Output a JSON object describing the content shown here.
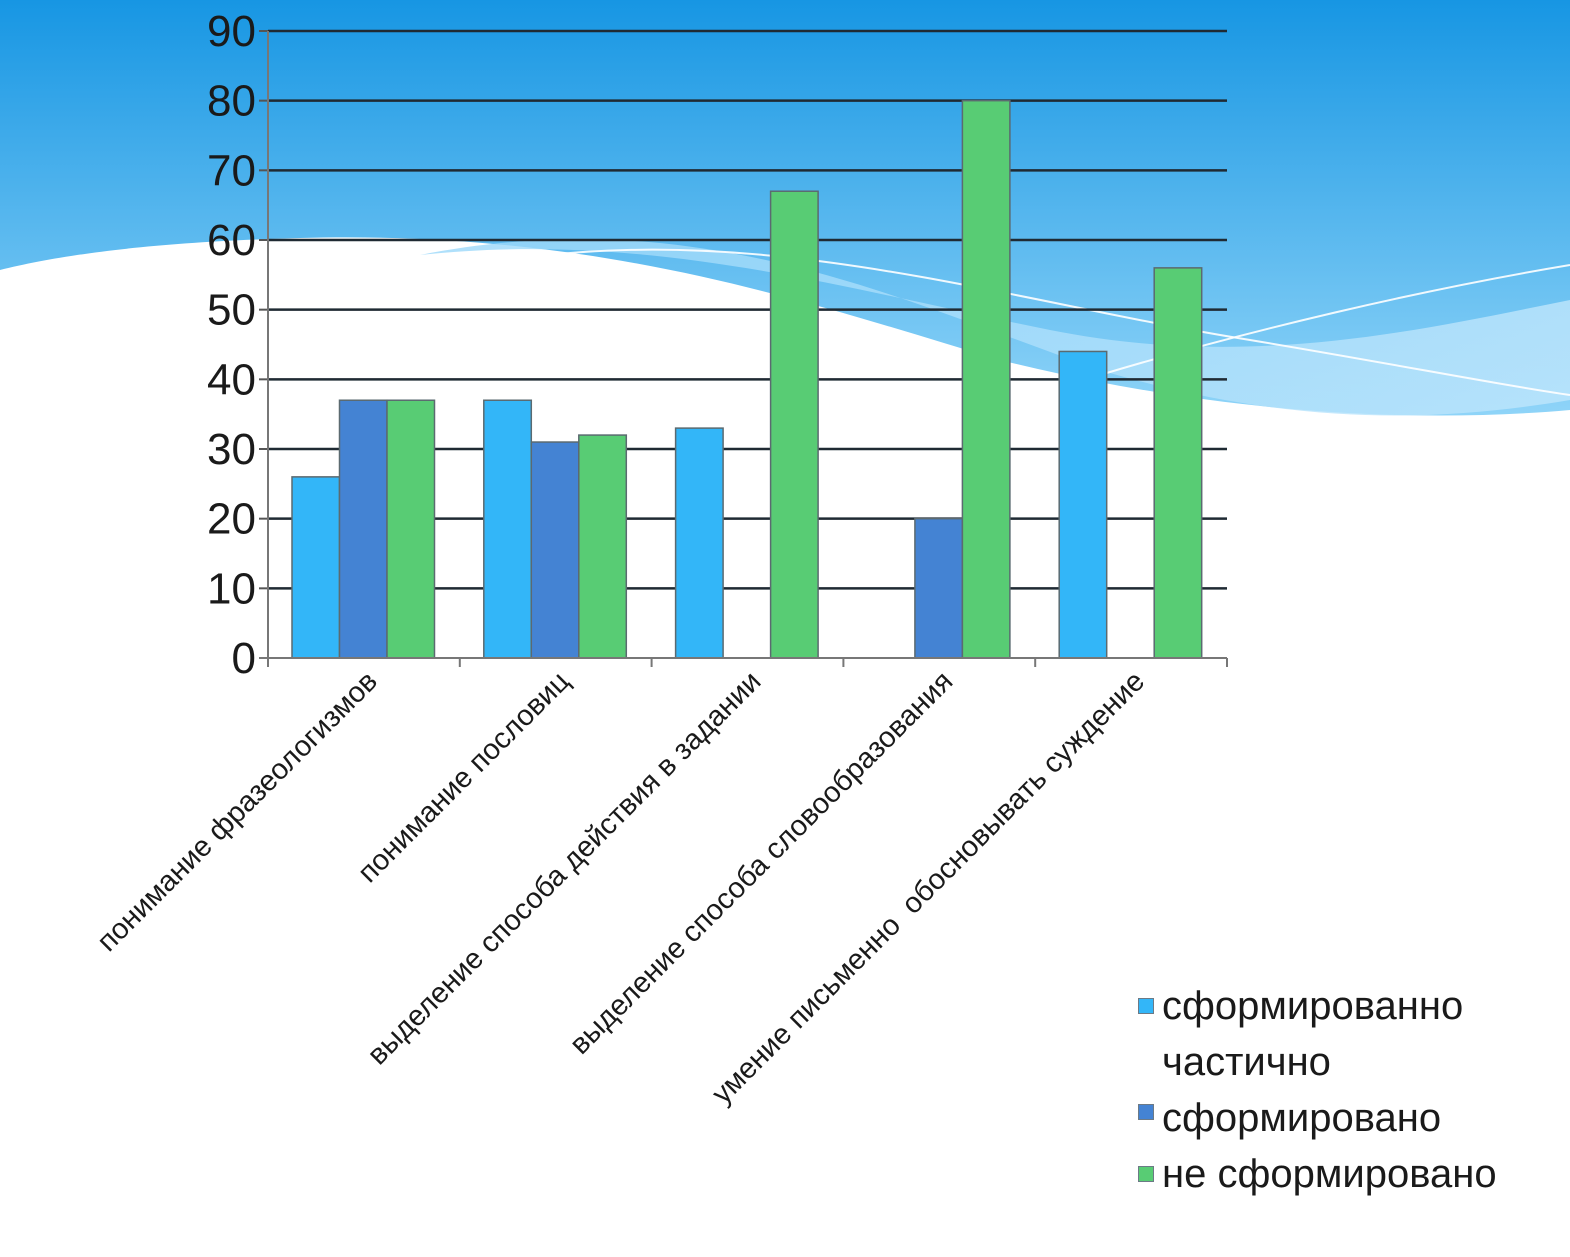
{
  "colors": {
    "bg_top": "#1e9be6",
    "bg_mid": "#6cc6f5",
    "bg_light": "#b8e3fb",
    "gridline": "#1f2a33",
    "series": [
      "#33b6f8",
      "#4483d3",
      "#58cc74"
    ]
  },
  "chart_data": {
    "type": "bar",
    "title": "",
    "xlabel": "",
    "ylabel": "",
    "ylim": [
      0,
      90
    ],
    "yticks": [
      0,
      10,
      20,
      30,
      40,
      50,
      60,
      70,
      80,
      90
    ],
    "grid": true,
    "legend_position": "bottom-right",
    "categories": [
      "понимание фразеологизмов",
      "понимание пословиц",
      "выделение способа действия в задании",
      "выделение способа словообразования",
      "умение письменно  обосновывать суждение"
    ],
    "series": [
      {
        "name": "сформированно",
        "values": [
          26,
          37,
          33,
          0,
          44
        ]
      },
      {
        "name": "частично сформировано",
        "values": [
          37,
          31,
          0,
          20,
          0
        ]
      },
      {
        "name": "не сформировано",
        "values": [
          37,
          32,
          67,
          80,
          56
        ]
      }
    ]
  }
}
